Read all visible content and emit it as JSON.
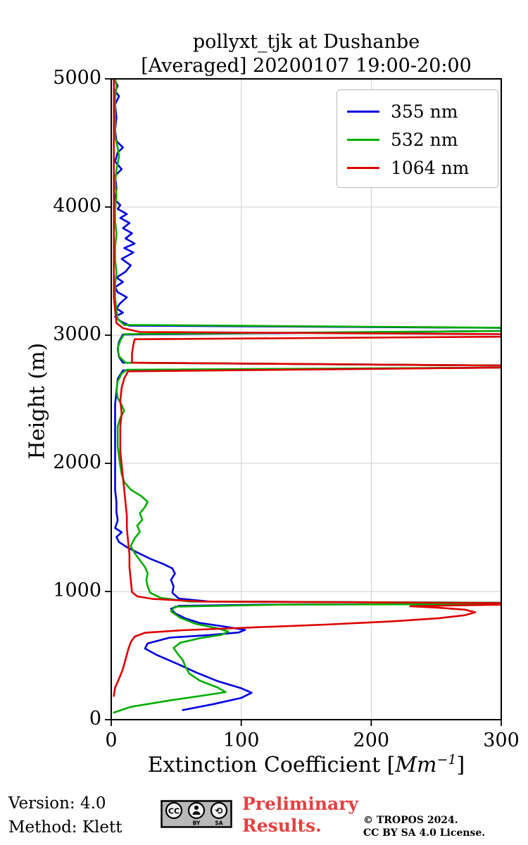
{
  "title_line1": "pollyxt_tjk at Dushanbe",
  "title_line2": "[Averaged] 20200107 19:00-20:00",
  "footer": {
    "version": "Version: 4.0",
    "method": "Method: Klett",
    "preliminary_line1": "Preliminary",
    "preliminary_line2": "Results.",
    "copyright_line1": "© TROPOS 2024.",
    "copyright_line2": "CC BY SA 4.0 License.",
    "cc_badge_label": "CC BY-SA"
  },
  "chart_data": {
    "type": "line",
    "title": "pollyxt_tjk at Dushanbe [Averaged] 20200107 19:00-20:00",
    "xlabel_prefix": "Extinction Coefficient [",
    "xlabel_math": "Mm",
    "xlabel_sup": "−1",
    "xlabel_suffix": "]",
    "ylabel": "Height (m)",
    "xlim": [
      0,
      300
    ],
    "ylim": [
      0,
      5000
    ],
    "x_ticks": [
      0,
      100,
      200,
      300
    ],
    "y_ticks": [
      0,
      1000,
      2000,
      3000,
      4000,
      5000
    ],
    "grid": true,
    "grid_color": "#cfcfcf",
    "legend_position": "top-right",
    "series": [
      {
        "name": "355 nm",
        "color": "#0000e0",
        "points": [
          [
            55,
            75
          ],
          [
            78,
            120
          ],
          [
            100,
            170
          ],
          [
            108,
            210
          ],
          [
            100,
            245
          ],
          [
            82,
            300
          ],
          [
            65,
            370
          ],
          [
            52,
            430
          ],
          [
            35,
            505
          ],
          [
            26,
            555
          ],
          [
            28,
            595
          ],
          [
            45,
            640
          ],
          [
            75,
            660
          ],
          [
            98,
            680
          ],
          [
            103,
            700
          ],
          [
            88,
            725
          ],
          [
            68,
            755
          ],
          [
            57,
            790
          ],
          [
            49,
            830
          ],
          [
            46,
            865
          ],
          [
            52,
            888
          ],
          [
            120,
            898
          ],
          [
            300,
            903
          ],
          [
            300,
            912
          ],
          [
            75,
            922
          ],
          [
            52,
            945
          ],
          [
            47,
            990
          ],
          [
            48,
            1040
          ],
          [
            46,
            1090
          ],
          [
            49,
            1140
          ],
          [
            47,
            1180
          ],
          [
            40,
            1215
          ],
          [
            30,
            1255
          ],
          [
            22,
            1295
          ],
          [
            13,
            1340
          ],
          [
            6,
            1385
          ],
          [
            4,
            1425
          ],
          [
            8,
            1462
          ],
          [
            3,
            1495
          ],
          [
            5,
            1555
          ],
          [
            4,
            1620
          ],
          [
            4,
            1700
          ],
          [
            3,
            1790
          ],
          [
            3,
            1880
          ],
          [
            3,
            1970
          ],
          [
            3,
            2060
          ],
          [
            3,
            2160
          ],
          [
            3,
            2260
          ],
          [
            3,
            2360
          ],
          [
            3,
            2460
          ],
          [
            4,
            2560
          ],
          [
            5,
            2660
          ],
          [
            9,
            2725
          ],
          [
            300,
            2747
          ],
          [
            300,
            2763
          ],
          [
            9,
            2785
          ],
          [
            6,
            2830
          ],
          [
            5,
            2890
          ],
          [
            6,
            2950
          ],
          [
            9,
            3005
          ],
          [
            300,
            3033
          ],
          [
            300,
            3057
          ],
          [
            14,
            3075
          ],
          [
            7,
            3110
          ],
          [
            3,
            3145
          ],
          [
            9,
            3175
          ],
          [
            4,
            3210
          ],
          [
            7,
            3250
          ],
          [
            12,
            3295
          ],
          [
            5,
            3335
          ],
          [
            3,
            3375
          ],
          [
            9,
            3415
          ],
          [
            4,
            3450
          ],
          [
            11,
            3495
          ],
          [
            15,
            3545
          ],
          [
            8,
            3595
          ],
          [
            17,
            3645
          ],
          [
            10,
            3680
          ],
          [
            18,
            3715
          ],
          [
            11,
            3755
          ],
          [
            16,
            3795
          ],
          [
            9,
            3835
          ],
          [
            14,
            3875
          ],
          [
            7,
            3915
          ],
          [
            12,
            3945
          ],
          [
            5,
            3985
          ],
          [
            7,
            4015
          ],
          [
            3,
            4055
          ],
          [
            4,
            4145
          ],
          [
            3,
            4245
          ],
          [
            8,
            4295
          ],
          [
            3,
            4355
          ],
          [
            5,
            4425
          ],
          [
            9,
            4465
          ],
          [
            4,
            4515
          ],
          [
            3,
            4600
          ],
          [
            4,
            4700
          ],
          [
            3,
            4800
          ],
          [
            6,
            4865
          ],
          [
            3,
            4905
          ],
          [
            5,
            4945
          ],
          [
            2,
            5000
          ]
        ]
      },
      {
        "name": "532 nm",
        "color": "#00ad00",
        "points": [
          [
            2,
            55
          ],
          [
            15,
            100
          ],
          [
            45,
            150
          ],
          [
            72,
            190
          ],
          [
            88,
            215
          ],
          [
            82,
            250
          ],
          [
            68,
            305
          ],
          [
            60,
            360
          ],
          [
            57,
            415
          ],
          [
            55,
            465
          ],
          [
            51,
            515
          ],
          [
            48,
            560
          ],
          [
            53,
            600
          ],
          [
            68,
            635
          ],
          [
            85,
            662
          ],
          [
            90,
            688
          ],
          [
            82,
            712
          ],
          [
            65,
            748
          ],
          [
            53,
            795
          ],
          [
            46,
            845
          ],
          [
            49,
            882
          ],
          [
            130,
            897
          ],
          [
            300,
            902
          ],
          [
            300,
            912
          ],
          [
            60,
            922
          ],
          [
            38,
            950
          ],
          [
            30,
            990
          ],
          [
            28,
            1040
          ],
          [
            27,
            1090
          ],
          [
            28,
            1140
          ],
          [
            26,
            1190
          ],
          [
            22,
            1245
          ],
          [
            18,
            1300
          ],
          [
            15,
            1355
          ],
          [
            18,
            1415
          ],
          [
            22,
            1465
          ],
          [
            20,
            1515
          ],
          [
            24,
            1560
          ],
          [
            22,
            1610
          ],
          [
            26,
            1660
          ],
          [
            28,
            1700
          ],
          [
            23,
            1745
          ],
          [
            15,
            1795
          ],
          [
            10,
            1855
          ],
          [
            8,
            1915
          ],
          [
            7,
            1980
          ],
          [
            6,
            2050
          ],
          [
            5,
            2130
          ],
          [
            5,
            2210
          ],
          [
            5,
            2290
          ],
          [
            7,
            2355
          ],
          [
            10,
            2410
          ],
          [
            8,
            2455
          ],
          [
            5,
            2510
          ],
          [
            4,
            2575
          ],
          [
            5,
            2640
          ],
          [
            8,
            2700
          ],
          [
            12,
            2730
          ],
          [
            300,
            2747
          ],
          [
            300,
            2763
          ],
          [
            11,
            2785
          ],
          [
            6,
            2835
          ],
          [
            5,
            2900
          ],
          [
            7,
            2958
          ],
          [
            10,
            3008
          ],
          [
            300,
            3033
          ],
          [
            300,
            3058
          ],
          [
            10,
            3080
          ],
          [
            5,
            3125
          ],
          [
            4,
            3195
          ],
          [
            3,
            3290
          ],
          [
            3,
            3390
          ],
          [
            4,
            3490
          ],
          [
            3,
            3590
          ],
          [
            3,
            3690
          ],
          [
            4,
            3790
          ],
          [
            3,
            3890
          ],
          [
            3,
            3990
          ],
          [
            4,
            4090
          ],
          [
            3,
            4190
          ],
          [
            4,
            4290
          ],
          [
            6,
            4395
          ],
          [
            5,
            4465
          ],
          [
            3,
            4545
          ],
          [
            3,
            4695
          ],
          [
            3,
            4845
          ],
          [
            4,
            4945
          ],
          [
            3,
            5000
          ]
        ]
      },
      {
        "name": "1064 nm",
        "color": "#dd0000",
        "points": [
          [
            2,
            185
          ],
          [
            3,
            250
          ],
          [
            6,
            320
          ],
          [
            9,
            395
          ],
          [
            11,
            470
          ],
          [
            13,
            545
          ],
          [
            15,
            605
          ],
          [
            18,
            648
          ],
          [
            26,
            678
          ],
          [
            55,
            698
          ],
          [
            105,
            718
          ],
          [
            165,
            742
          ],
          [
            218,
            768
          ],
          [
            252,
            792
          ],
          [
            272,
            815
          ],
          [
            280,
            838
          ],
          [
            272,
            858
          ],
          [
            250,
            875
          ],
          [
            230,
            885
          ],
          [
            300,
            897
          ],
          [
            300,
            910
          ],
          [
            70,
            922
          ],
          [
            32,
            942
          ],
          [
            20,
            962
          ],
          [
            16,
            995
          ],
          [
            15,
            1090
          ],
          [
            14,
            1190
          ],
          [
            14,
            1290
          ],
          [
            13,
            1390
          ],
          [
            12,
            1490
          ],
          [
            12,
            1590
          ],
          [
            11,
            1690
          ],
          [
            10,
            1790
          ],
          [
            9,
            1890
          ],
          [
            8,
            1990
          ],
          [
            7,
            2090
          ],
          [
            7,
            2190
          ],
          [
            7,
            2290
          ],
          [
            8,
            2390
          ],
          [
            7,
            2490
          ],
          [
            8,
            2590
          ],
          [
            10,
            2665
          ],
          [
            13,
            2718
          ],
          [
            300,
            2747
          ],
          [
            300,
            2763
          ],
          [
            16,
            2785
          ],
          [
            16,
            2855
          ],
          [
            17,
            2925
          ],
          [
            18,
            2968
          ],
          [
            300,
            2988
          ],
          [
            300,
            3008
          ],
          [
            22,
            3025
          ],
          [
            9,
            3055
          ],
          [
            4,
            3095
          ],
          [
            3,
            3195
          ],
          [
            2,
            3295
          ],
          [
            2,
            3495
          ],
          [
            2,
            3695
          ],
          [
            2,
            3895
          ],
          [
            2,
            4095
          ],
          [
            2,
            4295
          ],
          [
            2,
            4495
          ],
          [
            2,
            4695
          ],
          [
            2,
            4895
          ],
          [
            2,
            5000
          ]
        ]
      }
    ]
  }
}
